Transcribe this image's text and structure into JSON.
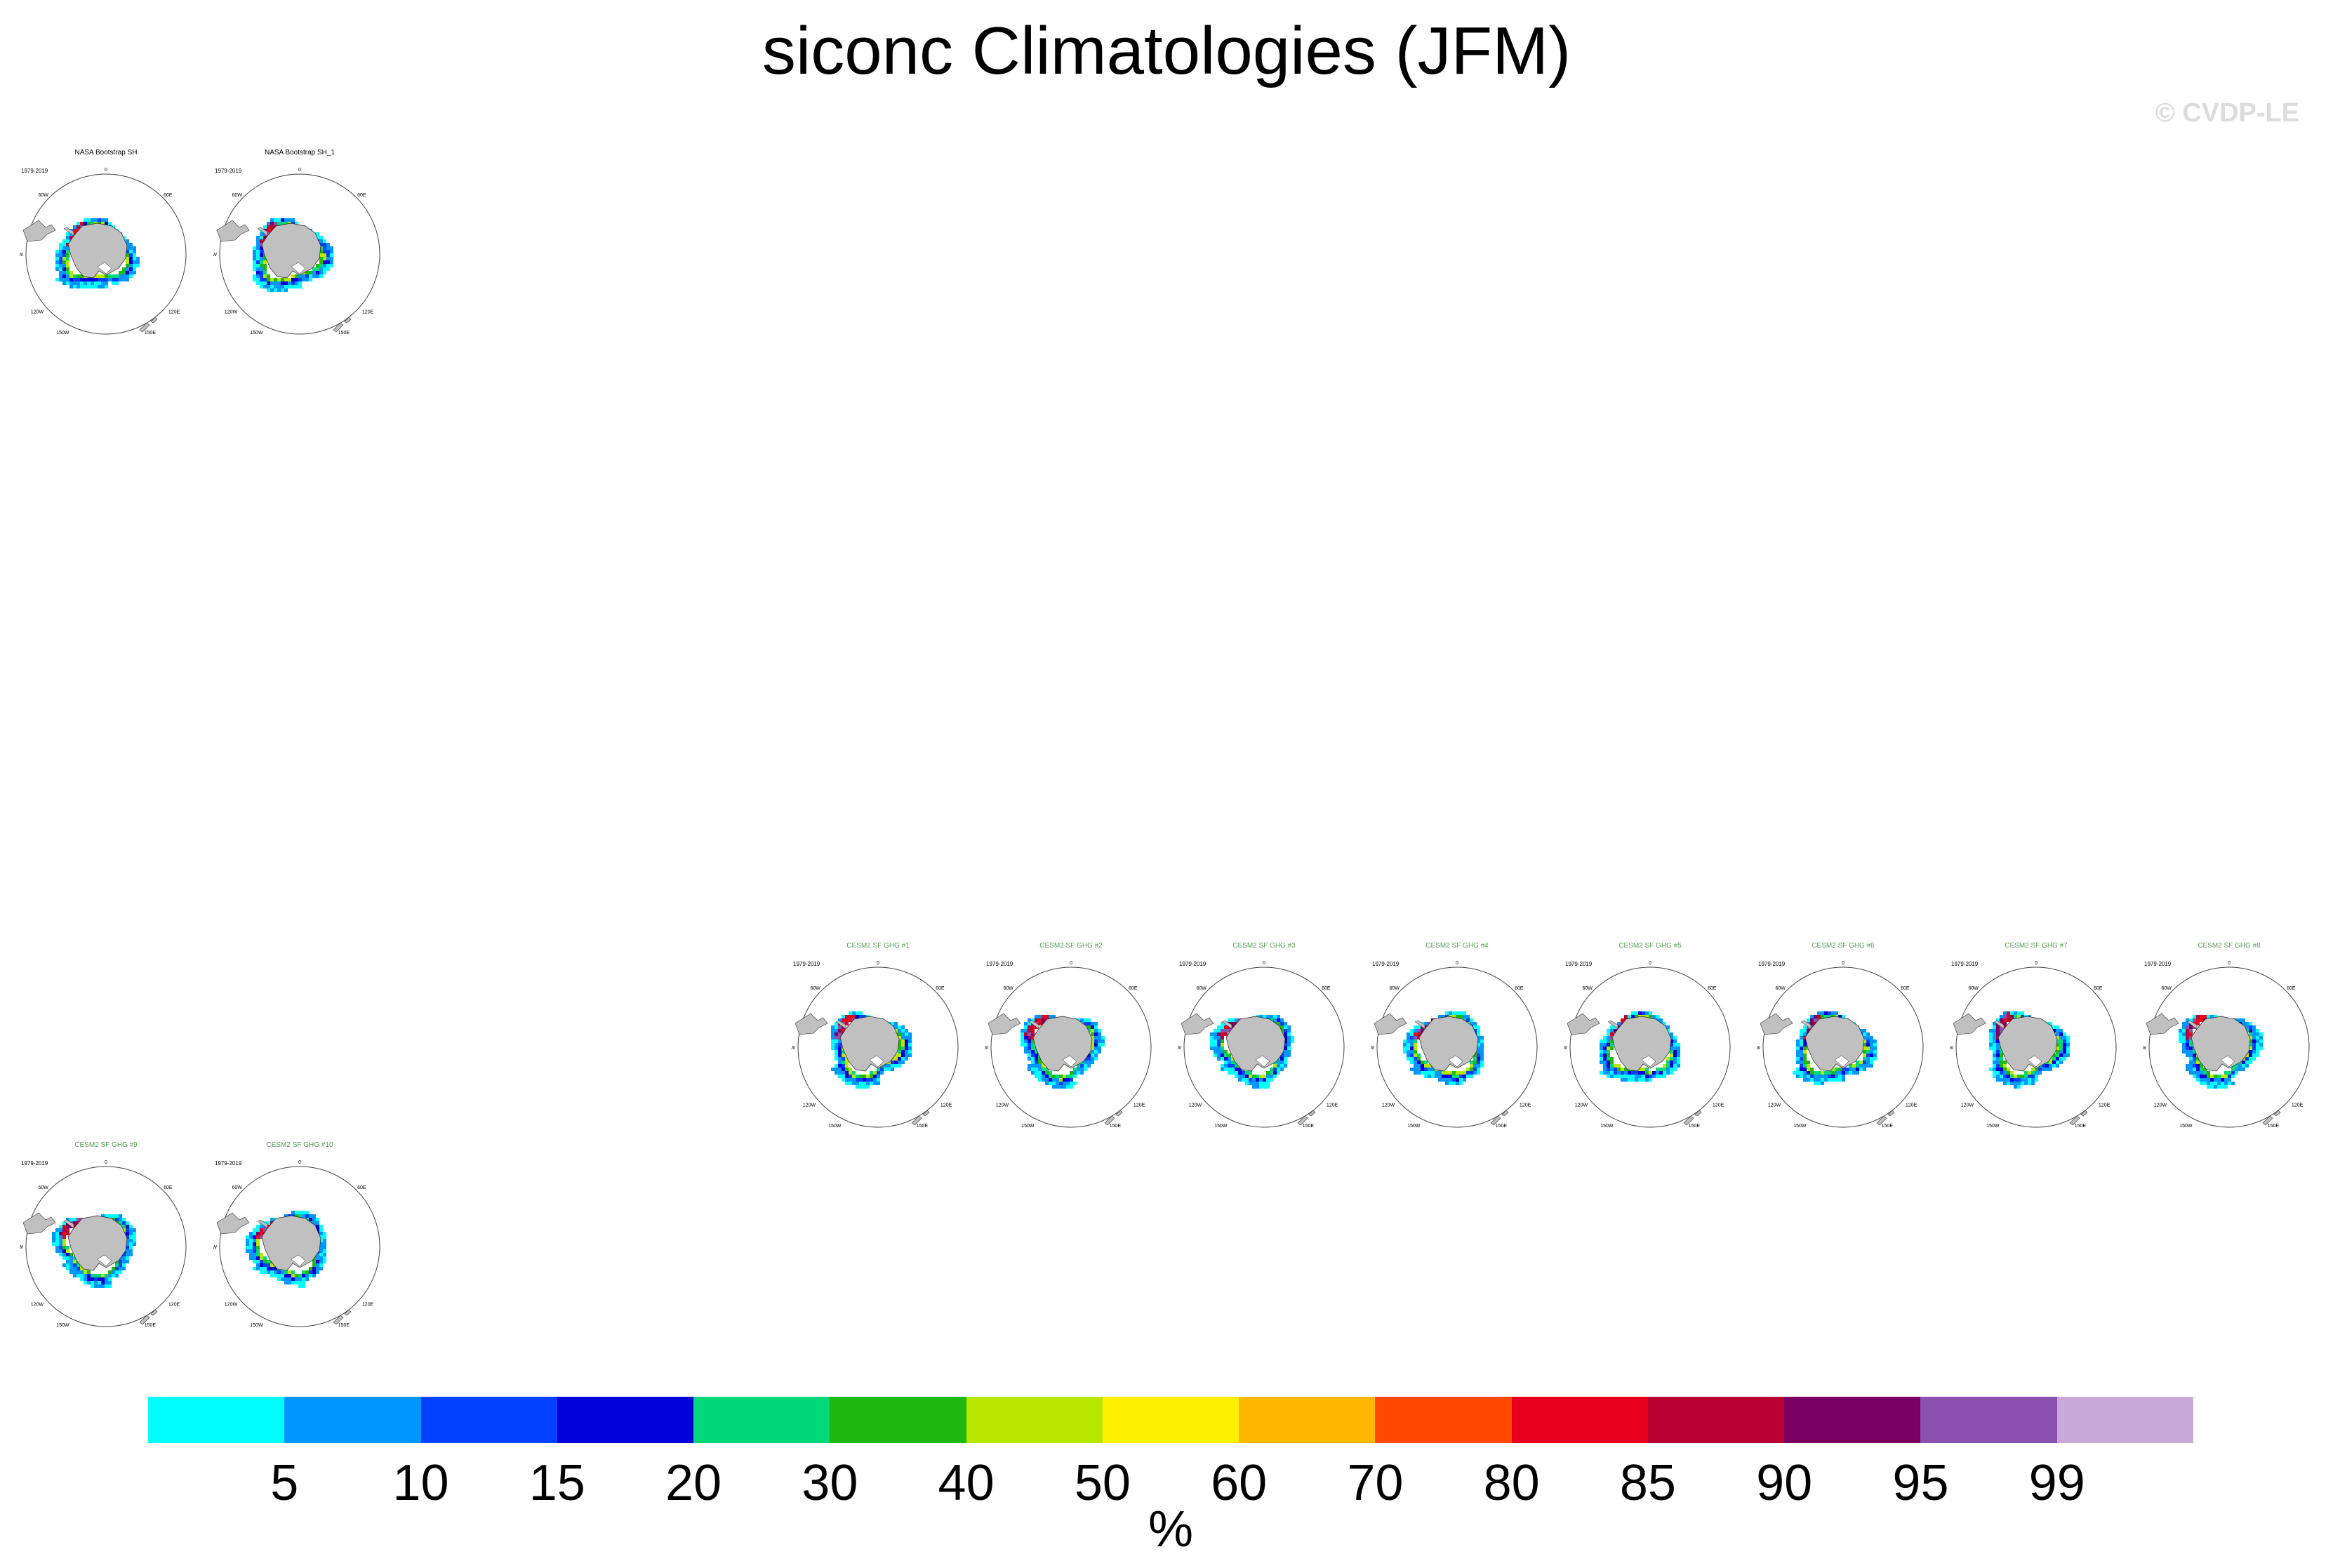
{
  "title": "siconc Climatologies (JFM)",
  "watermark": "© CVDP-LE",
  "panels": [
    {
      "title": "NASA Bootstrap SH",
      "title_color": "#000000",
      "period": "1979-2019",
      "variant": 0
    },
    {
      "title": "NASA Bootstrap SH_1",
      "title_color": "#000000",
      "period": "1979-2019",
      "variant": 1
    },
    {
      "title": "CESM2 SF GHG #1",
      "title_color": "#5a9b5a",
      "period": "1979-2019",
      "variant": 2
    },
    {
      "title": "CESM2 SF GHG #2",
      "title_color": "#5a9b5a",
      "period": "1979-2019",
      "variant": 3
    },
    {
      "title": "CESM2 SF GHG #3",
      "title_color": "#5a9b5a",
      "period": "1979-2019",
      "variant": 4
    },
    {
      "title": "CESM2 SF GHG #4",
      "title_color": "#5a9b5a",
      "period": "1979-2019",
      "variant": 5
    },
    {
      "title": "CESM2 SF GHG #5",
      "title_color": "#5a9b5a",
      "period": "1979-2019",
      "variant": 6
    },
    {
      "title": "CESM2 SF GHG #6",
      "title_color": "#5a9b5a",
      "period": "1979-2019",
      "variant": 7
    },
    {
      "title": "CESM2 SF GHG #7",
      "title_color": "#5a9b5a",
      "period": "1979-2019",
      "variant": 8
    },
    {
      "title": "CESM2 SF GHG #8",
      "title_color": "#5a9b5a",
      "period": "1979-2019",
      "variant": 9
    },
    {
      "title": "CESM2 SF GHG #9",
      "title_color": "#5a9b5a",
      "period": "1979-2019",
      "variant": 10
    },
    {
      "title": "CESM2 SF GHG #10",
      "title_color": "#5a9b5a",
      "period": "1979-2019",
      "variant": 11
    }
  ],
  "map_labels": {
    "top": "0",
    "bottom": "180",
    "left": "90W",
    "right": "90E",
    "ul": "60W",
    "ur": "60E",
    "ll": "120W",
    "lr": "120E",
    "bl2": "150W",
    "br2": "150E",
    "ul2": "30W",
    "ur2": "30E"
  },
  "colorbar": {
    "colors": [
      "#00ffff",
      "#0096ff",
      "#0040ff",
      "#0000d8",
      "#00d87a",
      "#1eb80e",
      "#b8e800",
      "#fff000",
      "#ffb800",
      "#ff4800",
      "#e8001c",
      "#b80032",
      "#7a0062",
      "#8c50ae",
      "#c8a8d8"
    ],
    "labels": [
      "5",
      "10",
      "15",
      "20",
      "30",
      "40",
      "50",
      "60",
      "70",
      "80",
      "85",
      "90",
      "95",
      "99"
    ],
    "units": "%"
  },
  "land_color": "#c0c0c0"
}
